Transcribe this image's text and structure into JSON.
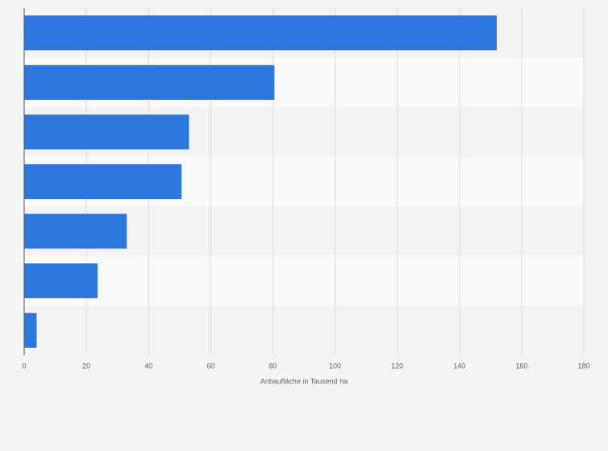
{
  "chart_data": {
    "type": "bar",
    "orientation": "horizontal",
    "categories": [
      null,
      null,
      null,
      null,
      null,
      null,
      null
    ],
    "values": [
      152,
      80.5,
      53,
      50.6,
      33,
      23.6,
      4
    ],
    "color": "#2b77de",
    "xlabel": "Anbaufläche in Tausend ha",
    "xlim": [
      0,
      180
    ],
    "xticks": [
      0,
      20,
      40,
      60,
      80,
      100,
      120,
      140,
      160,
      180
    ],
    "grid": true
  }
}
